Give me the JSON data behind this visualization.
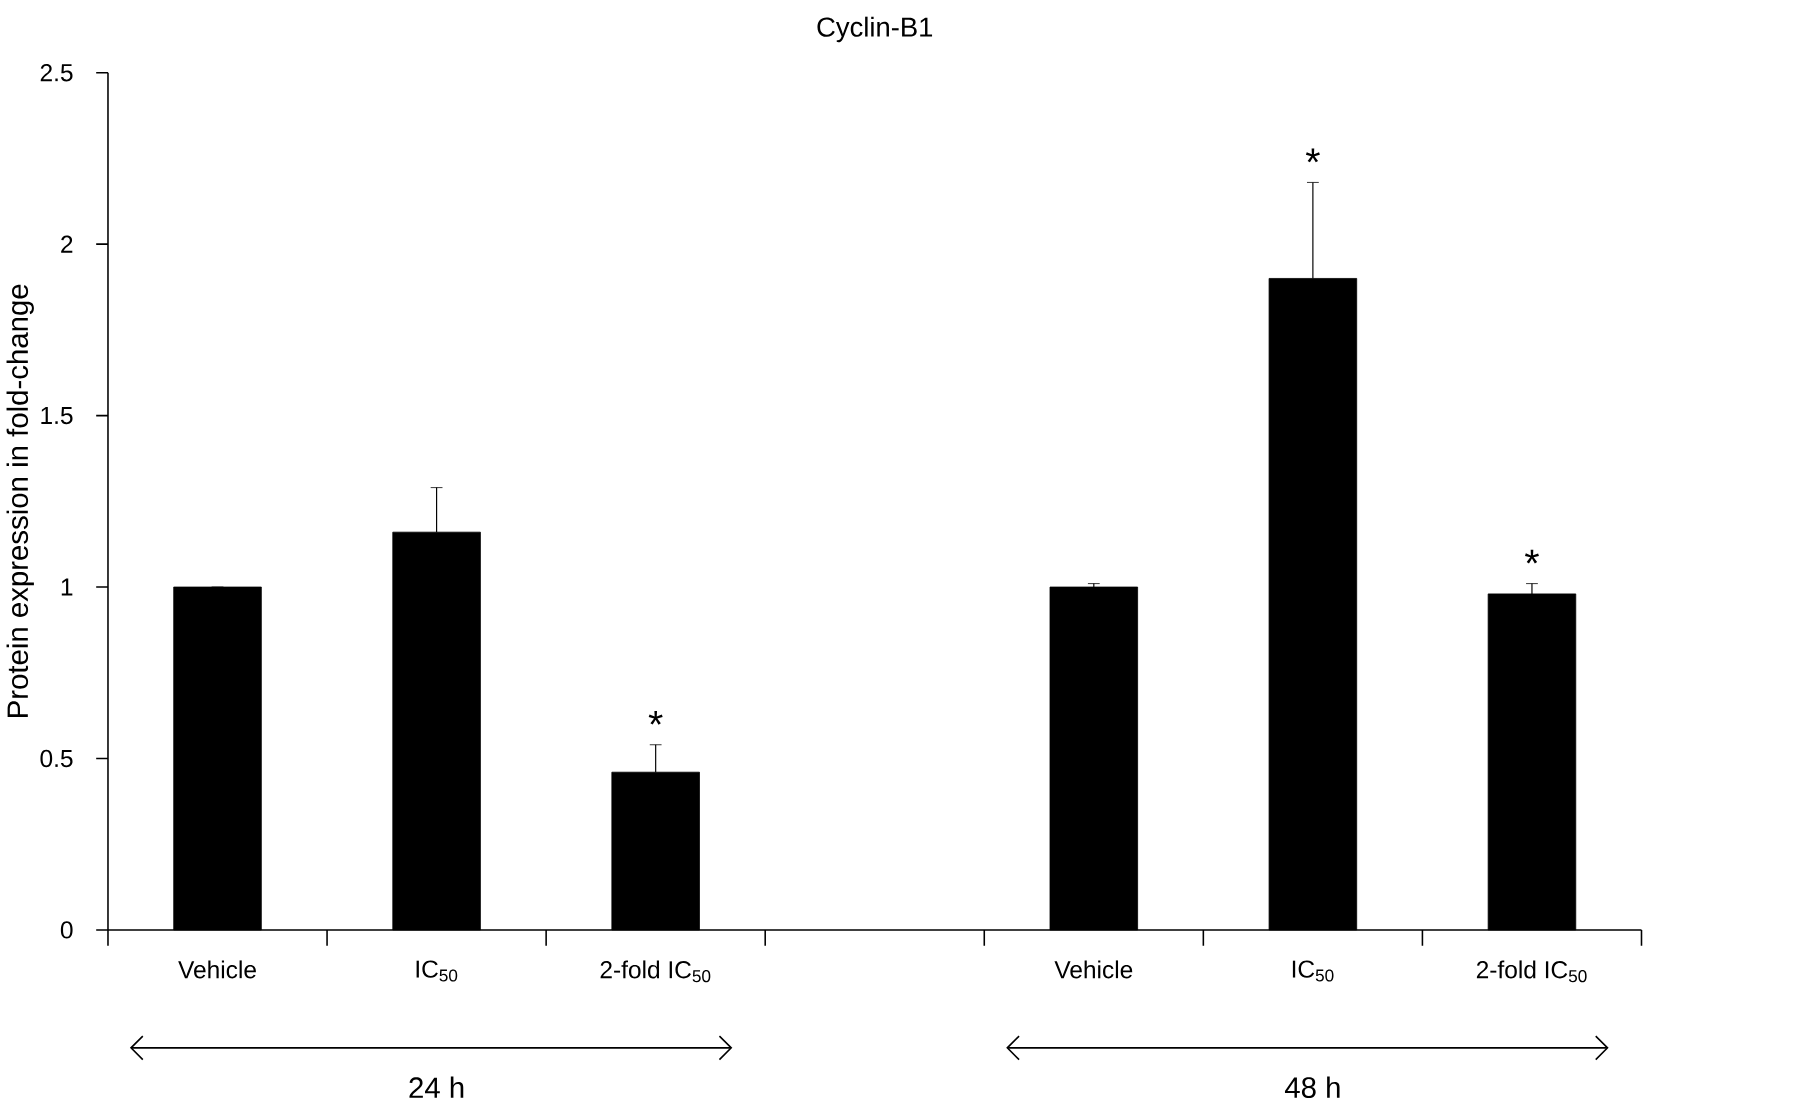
{
  "chart_data": {
    "type": "bar",
    "title": "Cyclin-B1",
    "ylabel": "Protein expression in fold-change",
    "categories": [
      "Vehicle",
      "IC$_{50}$",
      "2-fold IC$_{50}$",
      null,
      "Vehicle",
      "IC$_{50}$",
      "2-fold IC$_{50}$"
    ],
    "values": [
      1.0,
      1.16,
      0.46,
      null,
      1.0,
      1.9,
      0.98
    ],
    "errors": [
      null,
      0.13,
      0.08,
      null,
      0.01,
      0.28,
      0.03
    ],
    "value_labels": [
      null,
      null,
      "*",
      null,
      null,
      "*",
      "*"
    ],
    "color": "#000000",
    "ylim": [
      0,
      2.5
    ],
    "yticks": [
      0,
      0.5,
      1,
      1.5,
      2,
      2.5
    ],
    "annotations": [
      "24 h",
      "48 h"
    ],
    "grid": false
  }
}
